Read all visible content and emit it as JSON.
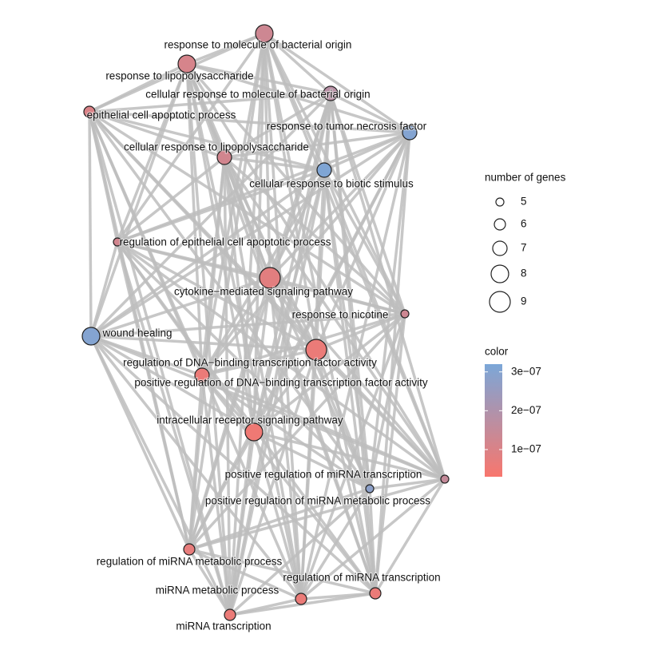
{
  "nodes": [
    {
      "label": "response to molecule of bacterial origin",
      "genes": 8,
      "pvalue": 1.3e-07
    },
    {
      "label": "response to lipopolysaccharide",
      "genes": 8,
      "pvalue": 1.1e-07
    },
    {
      "label": "cellular response to molecule of bacterial origin",
      "genes": 7,
      "pvalue": 1.8e-07
    },
    {
      "label": "epithelial cell apoptotic process",
      "genes": 6,
      "pvalue": 1e-07
    },
    {
      "label": "response to tumor necrosis factor",
      "genes": 7,
      "pvalue": 3e-07
    },
    {
      "label": "cellular response to lipopolysaccharide",
      "genes": 7,
      "pvalue": 1.2e-07
    },
    {
      "label": "cellular response to biotic stimulus",
      "genes": 7,
      "pvalue": 3.1e-07
    },
    {
      "label": "regulation of epithelial cell apoptotic process",
      "genes": 5,
      "pvalue": 1.2e-07
    },
    {
      "label": "cytokine−mediated signaling pathway",
      "genes": 9,
      "pvalue": 8e-08
    },
    {
      "label": "response to nicotine",
      "genes": 5,
      "pvalue": 1.3e-07
    },
    {
      "label": "wound healing",
      "genes": 8,
      "pvalue": 3e-07
    },
    {
      "label": "regulation of DNA−binding transcription factor activity",
      "genes": 9,
      "pvalue": 6e-08
    },
    {
      "label": "positive regulation of DNA−binding transcription factor activity",
      "genes": 7,
      "pvalue": 6e-08
    },
    {
      "label": "intracellular receptor signaling pathway",
      "genes": 8,
      "pvalue": 5e-08
    },
    {
      "label": "positive regulation of miRNA transcription",
      "genes": 5,
      "pvalue": 1.5e-07
    },
    {
      "label": "positive regulation of miRNA metabolic process",
      "genes": 5,
      "pvalue": 2.8e-07
    },
    {
      "label": "regulation of miRNA metabolic process",
      "genes": 6,
      "pvalue": 7e-08
    },
    {
      "label": "miRNA metabolic process",
      "genes": 6,
      "pvalue": 6e-08
    },
    {
      "label": "regulation of miRNA transcription",
      "genes": 6,
      "pvalue": 6e-08
    },
    {
      "label": "miRNA transcription",
      "genes": 6,
      "pvalue": 6e-08
    }
  ],
  "legend": {
    "size_title": "number of genes",
    "size_ticks": [
      5,
      6,
      7,
      8,
      9
    ],
    "color_title": "color",
    "color_range": [
      3e-08,
      3.2e-07
    ],
    "color_ticks": [
      {
        "value": 3e-07,
        "label": "3e−07"
      },
      {
        "value": 2e-07,
        "label": "2e−07"
      },
      {
        "value": 1e-07,
        "label": "1e−07"
      }
    ]
  }
}
